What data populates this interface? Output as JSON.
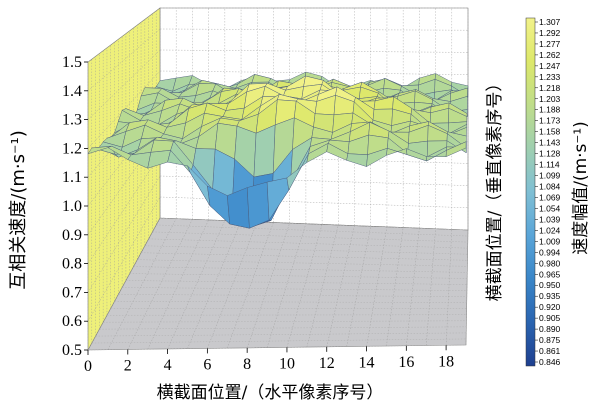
{
  "chart_data": {
    "type": "surface3d",
    "x_axis": {
      "label": "横截面位置/（水平像素序号）",
      "ticks": [
        "0",
        "2",
        "4",
        "6",
        "8",
        "10",
        "12",
        "14",
        "16",
        "18"
      ],
      "range": [
        0,
        19
      ]
    },
    "y_axis": {
      "label": "横截面位置/（垂直像素序号）",
      "ticks": [],
      "range": [
        0,
        19
      ]
    },
    "z_axis": {
      "label": "互相关速度/(m·s⁻¹)",
      "ticks": [
        "0.5",
        "0.6",
        "0.7",
        "0.8",
        "0.9",
        "1.0",
        "1.1",
        "1.2",
        "1.3",
        "1.4",
        "1.5"
      ],
      "range": [
        0.5,
        1.5
      ]
    },
    "colorbar": {
      "label": "速度幅值/(m·s⁻¹)",
      "ticks": [
        "1.307",
        "1.292",
        "1.277",
        "1.262",
        "1.247",
        "1.233",
        "1.218",
        "1.203",
        "1.188",
        "1.173",
        "1.158",
        "1.143",
        "1.128",
        "1.114",
        "1.099",
        "1.084",
        "1.069",
        "1.054",
        "1.039",
        "1.024",
        "1.009",
        "0.994",
        "0.980",
        "0.965",
        "0.950",
        "0.935",
        "0.920",
        "0.905",
        "0.890",
        "0.875",
        "0.861",
        "0.846"
      ],
      "min": 0.846,
      "max": 1.307,
      "colormap": [
        "#1e3f8f",
        "#2a64b0",
        "#3a86c8",
        "#5aa5d8",
        "#7fbfd4",
        "#9fcfb0",
        "#bfdd8a",
        "#dde86a",
        "#f2f28a"
      ]
    },
    "surface": {
      "grid_size": [
        20,
        20
      ],
      "peak": {
        "x": 10,
        "y": 8,
        "z": 1.307
      },
      "base_level": 1.16,
      "min_value": 0.846,
      "description_values": {
        "edge_mean": 1.16,
        "peak": 1.307,
        "trough": 0.846
      }
    },
    "walls": {
      "back_color": "#ffffff",
      "left_color": "#eef07a",
      "floor_color": "#c9c9cc"
    },
    "grid": true
  }
}
